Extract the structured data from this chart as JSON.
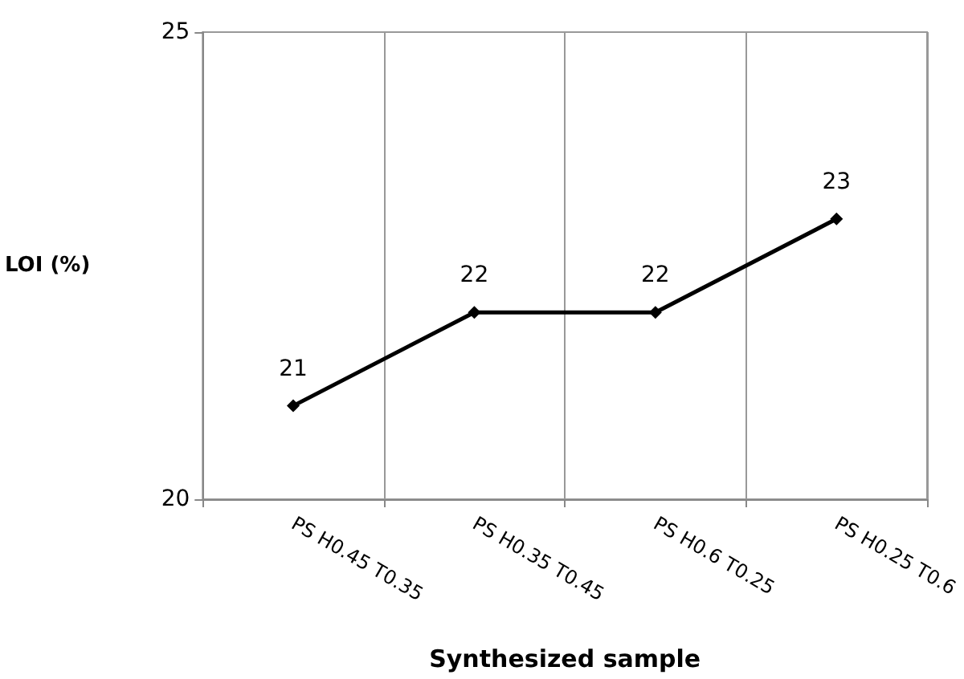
{
  "chart_data": {
    "type": "line",
    "xlabel": "Synthesized sample",
    "ylabel": "LOI (%)",
    "categories": [
      "PS H0.45 T0.35",
      "PS H0.35 T0.45",
      "PS H0.6 T0.25",
      "PS H0.25 T0.6"
    ],
    "series": [
      {
        "color": "#000000",
        "values": [
          21,
          22,
          22,
          23
        ]
      }
    ],
    "ylim": [
      20,
      25
    ],
    "yticks": [
      20,
      25
    ],
    "grid": "x",
    "marker": "diamond",
    "line_style": "solid",
    "data_labels": true
  }
}
